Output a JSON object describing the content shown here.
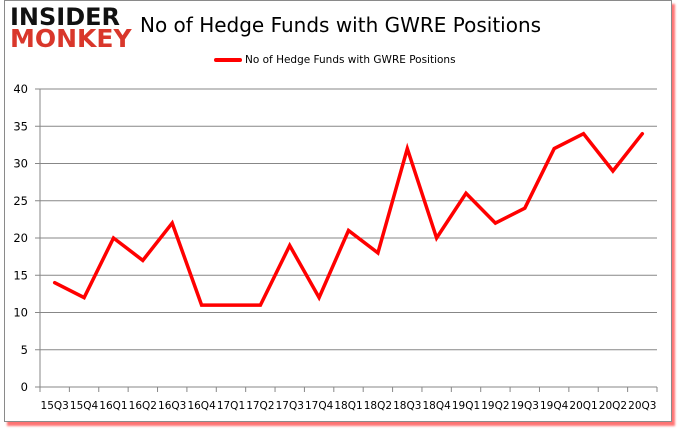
{
  "logo": {
    "line1": "INSIDER",
    "line2": "MONKEY"
  },
  "header": {
    "title": "No of Hedge Funds with GWRE Positions"
  },
  "legend": {
    "label": "No of Hedge Funds with GWRE Positions",
    "color": "#ff0000"
  },
  "colors": {
    "line": "#ff0000",
    "grid": "#878787",
    "frame_shadow": "#ff0000"
  },
  "chart_data": {
    "type": "line",
    "title": "No of Hedge Funds with GWRE Positions",
    "xlabel": "",
    "ylabel": "",
    "ylim": [
      0,
      40
    ],
    "yticks": [
      0,
      5,
      10,
      15,
      20,
      25,
      30,
      35,
      40
    ],
    "grid": true,
    "legend_position": "top",
    "categories": [
      "15Q3",
      "15Q4",
      "16Q1",
      "16Q2",
      "16Q3",
      "16Q4",
      "17Q1",
      "17Q2",
      "17Q3",
      "17Q4",
      "18Q1",
      "18Q2",
      "18Q3",
      "18Q4",
      "19Q1",
      "19Q2",
      "19Q3",
      "19Q4",
      "20Q1",
      "20Q2",
      "20Q3"
    ],
    "series": [
      {
        "name": "No of Hedge Funds with GWRE Positions",
        "values": [
          14,
          12,
          20,
          17,
          22,
          11,
          11,
          11,
          19,
          12,
          21,
          18,
          32,
          20,
          26,
          22,
          24,
          32,
          34,
          29,
          34
        ]
      }
    ]
  }
}
